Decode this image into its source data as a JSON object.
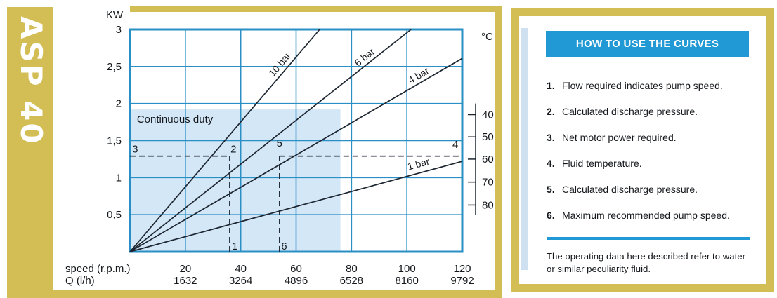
{
  "product_label": "ASP 40",
  "colors": {
    "gold": "#d3be55",
    "blue": "#2199d4",
    "grid_blue": "#2a8fc4",
    "light_blue_fill": "#d4e7f6",
    "stripe_blue": "#cfe0f1",
    "line_dark": "#1c2530"
  },
  "chart_data": {
    "type": "line",
    "y_axis": {
      "label": "KW",
      "ticks": [
        "0,5",
        "1",
        "1,5",
        "2",
        "2,5",
        "3"
      ],
      "values": [
        0.5,
        1,
        1.5,
        2,
        2.5,
        3
      ],
      "max": 3
    },
    "x_axis": {
      "label": "speed (r.p.m.)",
      "ticks": [
        20,
        40,
        60,
        80,
        100,
        120
      ],
      "max": 120
    },
    "x2_axis": {
      "label": "Q (l/h)",
      "ticks": [
        1632,
        3264,
        4896,
        6528,
        8160,
        9792
      ]
    },
    "temp_axis": {
      "label": "°C",
      "ticks": [
        40,
        50,
        60,
        70,
        80
      ],
      "tick_positions_kw": [
        1.85,
        1.55,
        1.25,
        0.94,
        0.63
      ],
      "line_range_kw": [
        0.5,
        2.0
      ]
    },
    "series": [
      {
        "name": "10 bar",
        "from": [
          0,
          0
        ],
        "to": [
          68.5,
          3
        ],
        "label_at": [
          55,
          2.5
        ],
        "label_angle": -50
      },
      {
        "name": "6 bar",
        "from": [
          0,
          0
        ],
        "to": [
          101.5,
          3
        ],
        "label_at": [
          85.5,
          2.59
        ],
        "label_angle": -39
      },
      {
        "name": "4 bar",
        "from": [
          0,
          0
        ],
        "to": [
          120,
          2.61
        ],
        "label_at": [
          104.8,
          2.34
        ],
        "label_angle": -30
      },
      {
        "name": "1 bar",
        "from": [
          0,
          0
        ],
        "to": [
          120,
          1.22
        ],
        "label_at": [
          104.5,
          1.14
        ],
        "label_angle": -15
      }
    ],
    "continuous_duty": {
      "label": "Continuous duty",
      "x_max": 76,
      "y_max": 1.92,
      "label_at": [
        2.5,
        1.74
      ]
    },
    "guides": {
      "h_lines": [
        {
          "y": 1.29,
          "x1": 0,
          "x2": 36
        },
        {
          "y": 1.29,
          "x1": 54,
          "x2": 120
        }
      ],
      "v_lines": [
        {
          "x": 36,
          "y1": 0,
          "y2": 1.29
        },
        {
          "x": 54,
          "y1": 0,
          "y2": 1.29
        }
      ],
      "labels": [
        {
          "text": "3",
          "x": 0.8,
          "y": 1.34,
          "anchor": "start"
        },
        {
          "text": "2",
          "x": 36.3,
          "y": 1.34,
          "anchor": "start"
        },
        {
          "text": "5",
          "x": 54,
          "y": 1.42,
          "anchor": "middle"
        },
        {
          "text": "4",
          "x": 117.5,
          "y": 1.4,
          "anchor": "middle"
        },
        {
          "text": "1",
          "x": 36.8,
          "y": 0.03,
          "anchor": "start"
        },
        {
          "text": "6",
          "x": 54.6,
          "y": 0.03,
          "anchor": "start"
        }
      ]
    }
  },
  "instructions": {
    "title": "HOW TO USE THE CURVES",
    "items": [
      {
        "num": "1.",
        "text": "Flow required indicates pump speed."
      },
      {
        "num": "2.",
        "text": "Calculated discharge pressure."
      },
      {
        "num": "3.",
        "text": "Net motor power required."
      },
      {
        "num": "4.",
        "text": "Fluid temperature."
      },
      {
        "num": "5.",
        "text": "Calculated discharge pressure."
      },
      {
        "num": "6.",
        "text": "Maximum recommended pump speed."
      }
    ],
    "footnote": "The operating data here described refer to water or similar peculiarity fluid."
  }
}
